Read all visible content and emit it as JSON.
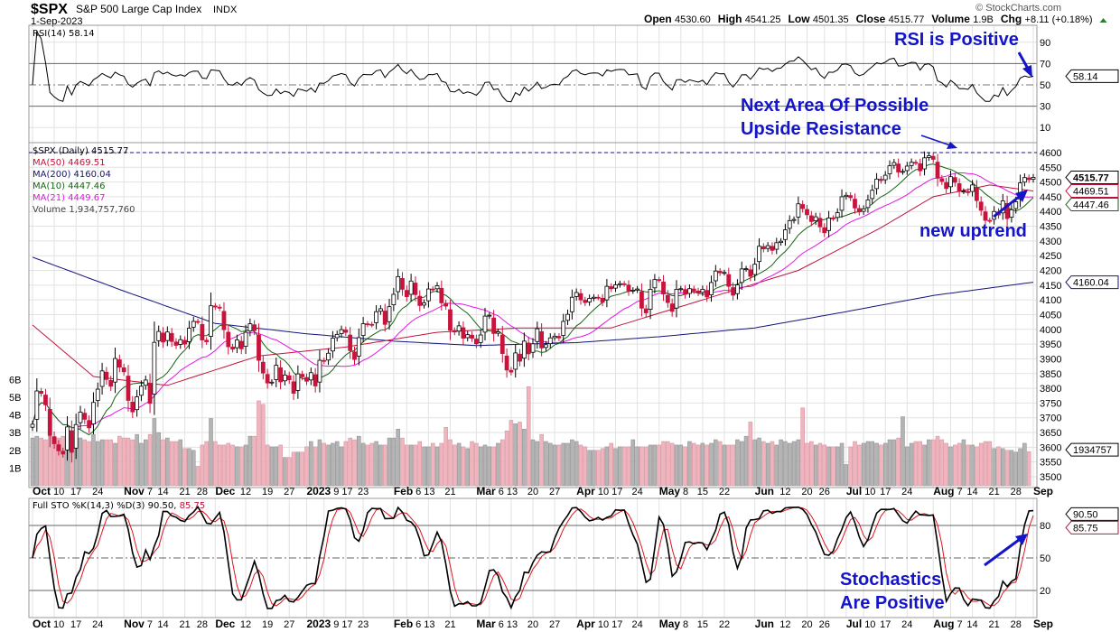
{
  "header": {
    "symbol": "$SPX",
    "name": "S&P 500 Large Cap Index",
    "exchange": "INDX",
    "date": "1-Sep-2023",
    "watermark": "© StockCharts.com",
    "ohlc": [
      {
        "k": "Open",
        "v": "4530.60"
      },
      {
        "k": "High",
        "v": "4541.25"
      },
      {
        "k": "Low",
        "v": "4501.35"
      },
      {
        "k": "Close",
        "v": "4515.77"
      },
      {
        "k": "Volume",
        "v": "1.9B"
      },
      {
        "k": "Chg",
        "v": "+8.11 (+0.18%)"
      }
    ]
  },
  "colors": {
    "ma50": "#c0143c",
    "ma200": "#14147d",
    "ma10": "#146414",
    "ma21": "#e614e6",
    "up_volume": "#b4b4b4",
    "down_volume": "#f0b4be",
    "down_candle": "#c8143c",
    "annotation": "#1414c8",
    "rsi_fill": "#6e9a6e"
  },
  "annotations": {
    "rsi": "RSI is Positive",
    "resistance_1": "Next Area Of Possible",
    "resistance_2": "Upside Resistance",
    "uptrend": "new uptrend",
    "sto_1": "Stochastics",
    "sto_2": "Are Positive"
  },
  "chart_data": [
    {
      "type": "line",
      "panel": "RSI",
      "legend": "RSI(14) 58.14",
      "last": "58.14",
      "ylim": [
        0,
        100
      ],
      "ticks": [
        "90",
        "70",
        "50",
        "30",
        "10"
      ],
      "overbought": 70,
      "oversold": 30
    },
    {
      "type": "candlestick",
      "panel": "Price",
      "legend": [
        "$SPX (Daily) 4515.77",
        "MA(50) 4469.51",
        "MA(200) 4160.04",
        "MA(10) 4447.46",
        "MA(21) 4449.67",
        "Volume 1,934,757,760"
      ],
      "start": "2022-10-03",
      "end": "2023-09-01",
      "ylim": [
        3480,
        4630
      ],
      "ticks": [
        "4600",
        "4550",
        "4500",
        "4450",
        "4400",
        "4350",
        "4300",
        "4250",
        "4200",
        "4150",
        "4100",
        "4050",
        "4000",
        "3950",
        "3900",
        "3850",
        "3800",
        "3750",
        "3700",
        "3650",
        "3600",
        "3550",
        "3500"
      ],
      "volume_ticks": [
        "6B",
        "5B",
        "4B",
        "3B",
        "2B",
        "1B"
      ],
      "resistance": 4600,
      "last_labels": {
        "close": "4515.77",
        "ma50": "4469.51",
        "ma10": "4447.46",
        "ma200": "4160.04",
        "volume": "1934757"
      },
      "close": [
        3678,
        3791,
        3783,
        3744,
        3640,
        3612,
        3588,
        3577,
        3669,
        3583,
        3677,
        3719,
        3695,
        3666,
        3752,
        3797,
        3859,
        3830,
        3807,
        3901,
        3872,
        3856,
        3759,
        3720,
        3771,
        3807,
        3828,
        3749,
        3956,
        3993,
        3957,
        3991,
        3959,
        3946,
        3965,
        3950,
        4004,
        4027,
        4026,
        3964,
        3958,
        4080,
        4076,
        4072,
        3999,
        3941,
        3933,
        3964,
        3934,
        3990,
        4019,
        3996,
        3895,
        3852,
        3818,
        3821,
        3878,
        3822,
        3845,
        3829,
        3783,
        3849,
        3839,
        3824,
        3853,
        3808,
        3895,
        3892,
        3919,
        3970,
        3983,
        3999,
        3990,
        3928,
        3898,
        3972,
        4019,
        4017,
        4016,
        4060,
        4070,
        4017,
        4077,
        4119,
        4179,
        4136,
        4111,
        4164,
        4118,
        4081,
        4090,
        4137,
        4136,
        4148,
        4090,
        4079,
        3997,
        3991,
        4012,
        3970,
        3982,
        3970,
        3951,
        3981,
        4045,
        4048,
        3986,
        3992,
        3918,
        3862,
        3855,
        3920,
        3892,
        3960,
        3917,
        3951,
        4002,
        3937,
        3948,
        3971,
        3977,
        3971,
        4027,
        4051,
        4109,
        4125,
        4100,
        4091,
        4105,
        4109,
        4108,
        4092,
        4146,
        4138,
        4151,
        4155,
        4154,
        4130,
        4133,
        4137,
        4072,
        4056,
        4136,
        4169,
        4168,
        4120,
        4091,
        4061,
        4136,
        4138,
        4119,
        4138,
        4131,
        4124,
        4136,
        4110,
        4159,
        4198,
        4192,
        4193,
        4146,
        4116,
        4151,
        4205,
        4206,
        4180,
        4221,
        4282,
        4273,
        4284,
        4268,
        4294,
        4299,
        4338,
        4369,
        4373,
        4426,
        4410,
        4389,
        4366,
        4382,
        4348,
        4328,
        4378,
        4377,
        4396,
        4450,
        4455,
        4447,
        4412,
        4399,
        4409,
        4439,
        4472,
        4510,
        4505,
        4523,
        4555,
        4566,
        4534,
        4536,
        4554,
        4567,
        4566,
        4538,
        4582,
        4589,
        4577,
        4513,
        4502,
        4478,
        4518,
        4499,
        4468,
        4469,
        4464,
        4490,
        4437,
        4404,
        4370,
        4369,
        4400,
        4388,
        4436,
        4376,
        4406,
        4433,
        4497,
        4515,
        4508,
        4515.77
      ],
      "volume_b": [
        2.7,
        2.8,
        2.7,
        2.6,
        2.8,
        2.6,
        2.7,
        2.8,
        3.2,
        2.9,
        2.6,
        2.7,
        2.6,
        2.5,
        2.9,
        2.5,
        2.6,
        2.6,
        2.6,
        2.4,
        2.8,
        2.7,
        2.7,
        2.6,
        2.9,
        2.4,
        2.6,
        2.9,
        3.8,
        3.0,
        2.6,
        2.7,
        2.5,
        2.5,
        2.6,
        2.1,
        2.1,
        2.0,
        1.1,
        2.3,
        2.5,
        3.8,
        2.5,
        2.3,
        2.3,
        2.4,
        2.3,
        2.2,
        2.2,
        2.3,
        2.8,
        2.8,
        4.8,
        4.6,
        2.3,
        2.2,
        2.2,
        2.3,
        1.6,
        1.6,
        1.9,
        1.9,
        1.9,
        2.2,
        2.5,
        2.2,
        2.6,
        2.4,
        2.3,
        2.4,
        2.5,
        2.2,
        2.5,
        2.7,
        2.6,
        2.8,
        2.4,
        2.3,
        2.4,
        2.5,
        2.3,
        2.3,
        2.7,
        2.7,
        3.2,
        2.7,
        2.3,
        2.3,
        2.3,
        2.5,
        2.2,
        2.2,
        2.4,
        2.2,
        2.4,
        3.3,
        2.6,
        2.3,
        2.4,
        2.2,
        2.1,
        2.5,
        2.4,
        2.2,
        2.3,
        2.2,
        2.2,
        2.4,
        2.6,
        3.1,
        3.7,
        3.5,
        3.6,
        3.2,
        5.6,
        2.6,
        2.5,
        2.9,
        2.5,
        2.4,
        2.3,
        2.3,
        2.4,
        2.4,
        2.6,
        2.5,
        2.3,
        2.2,
        2.0,
        2.0,
        2.0,
        2.1,
        2.2,
        2.4,
        2.1,
        2.2,
        2.2,
        2.2,
        2.6,
        2.2,
        2.2,
        2.2,
        2.3,
        2.3,
        2.3,
        2.5,
        2.5,
        2.4,
        2.3,
        2.3,
        2.2,
        2.5,
        2.4,
        2.3,
        2.4,
        2.3,
        2.4,
        2.6,
        2.5,
        2.3,
        2.3,
        2.3,
        2.6,
        2.5,
        2.8,
        3.6,
        2.6,
        2.7,
        2.5,
        2.4,
        2.5,
        2.3,
        2.6,
        2.5,
        2.4,
        2.5,
        2.6,
        4.4,
        2.4,
        2.5,
        2.3,
        2.4,
        2.3,
        2.2,
        2.2,
        2.2,
        2.4,
        1.2,
        2.2,
        2.5,
        2.3,
        2.4,
        2.5,
        2.5,
        2.4,
        2.3,
        2.4,
        2.6,
        2.6,
        2.7,
        3.9,
        2.2,
        2.4,
        2.5,
        2.5,
        2.3,
        2.6,
        2.6,
        2.8,
        2.6,
        2.4,
        2.2,
        2.3,
        2.4,
        2.6,
        2.3,
        2.3,
        2.2,
        2.4,
        2.5,
        2.5,
        2.1,
        2.2,
        2.1,
        2.0,
        2.0,
        1.9,
        2.1,
        2.4,
        1.93
      ],
      "ma50": [
        [
          "2022-10-03",
          4015
        ],
        [
          "2022-10-21",
          3840
        ],
        [
          "2022-11-15",
          3810
        ],
        [
          "2022-12-15",
          3910
        ],
        [
          "2023-01-17",
          3940
        ],
        [
          "2023-02-15",
          3990
        ],
        [
          "2023-03-15",
          4005
        ],
        [
          "2023-04-14",
          4005
        ],
        [
          "2023-05-15",
          4100
        ],
        [
          "2023-06-15",
          4200
        ],
        [
          "2023-07-14",
          4345
        ],
        [
          "2023-08-01",
          4450
        ],
        [
          "2023-08-18",
          4490
        ],
        [
          "2023-09-01",
          4469.51
        ]
      ],
      "ma200": [
        [
          "2022-10-03",
          4245
        ],
        [
          "2022-11-01",
          4130
        ],
        [
          "2022-12-01",
          4020
        ],
        [
          "2023-01-03",
          3985
        ],
        [
          "2023-02-01",
          3960
        ],
        [
          "2023-03-01",
          3945
        ],
        [
          "2023-04-03",
          3955
        ],
        [
          "2023-05-01",
          3975
        ],
        [
          "2023-06-01",
          4005
        ],
        [
          "2023-07-03",
          4060
        ],
        [
          "2023-08-01",
          4115
        ],
        [
          "2023-09-01",
          4160.04
        ]
      ]
    },
    {
      "type": "line",
      "panel": "Full STO",
      "legend": "Full STO %K(14,3) %D(3) 90.50,",
      "legend_d": "85.75",
      "last_k": "90.50",
      "last_d": "85.75",
      "ylim": [
        0,
        100
      ],
      "ticks": [
        "80",
        "50",
        "20"
      ]
    }
  ],
  "x_labels": [
    {
      "t": "Oct",
      "d": "2022-10-03",
      "b": 1
    },
    {
      "t": "10",
      "d": "2022-10-10"
    },
    {
      "t": "17",
      "d": "2022-10-17"
    },
    {
      "t": "24",
      "d": "2022-10-24"
    },
    {
      "t": "Nov",
      "d": "2022-11-01",
      "b": 1
    },
    {
      "t": "7",
      "d": "2022-11-07"
    },
    {
      "t": "14",
      "d": "2022-11-14"
    },
    {
      "t": "21",
      "d": "2022-11-21"
    },
    {
      "t": "28",
      "d": "2022-11-28"
    },
    {
      "t": "Dec",
      "d": "2022-12-01",
      "b": 1
    },
    {
      "t": "12",
      "d": "2022-12-12"
    },
    {
      "t": "19",
      "d": "2022-12-19"
    },
    {
      "t": "27",
      "d": "2022-12-27"
    },
    {
      "t": "2023",
      "d": "2023-01-03",
      "b": 1
    },
    {
      "t": "9",
      "d": "2023-01-09"
    },
    {
      "t": "17",
      "d": "2023-01-17"
    },
    {
      "t": "23",
      "d": "2023-01-23"
    },
    {
      "t": "Feb",
      "d": "2023-02-01",
      "b": 1
    },
    {
      "t": "6",
      "d": "2023-02-06"
    },
    {
      "t": "13",
      "d": "2023-02-13"
    },
    {
      "t": "21",
      "d": "2023-02-21"
    },
    {
      "t": "Mar",
      "d": "2023-03-01",
      "b": 1
    },
    {
      "t": "6",
      "d": "2023-03-06"
    },
    {
      "t": "13",
      "d": "2023-03-13"
    },
    {
      "t": "20",
      "d": "2023-03-20"
    },
    {
      "t": "27",
      "d": "2023-03-27"
    },
    {
      "t": "Apr",
      "d": "2023-04-03",
      "b": 1
    },
    {
      "t": "10",
      "d": "2023-04-10"
    },
    {
      "t": "17",
      "d": "2023-04-17"
    },
    {
      "t": "24",
      "d": "2023-04-24"
    },
    {
      "t": "May",
      "d": "2023-05-01",
      "b": 1
    },
    {
      "t": "8",
      "d": "2023-05-08"
    },
    {
      "t": "15",
      "d": "2023-05-15"
    },
    {
      "t": "22",
      "d": "2023-05-22"
    },
    {
      "t": "Jun",
      "d": "2023-06-01",
      "b": 1
    },
    {
      "t": "12",
      "d": "2023-06-12"
    },
    {
      "t": "20",
      "d": "2023-06-20"
    },
    {
      "t": "26",
      "d": "2023-06-26"
    },
    {
      "t": "Jul",
      "d": "2023-07-03",
      "b": 1
    },
    {
      "t": "10",
      "d": "2023-07-10"
    },
    {
      "t": "17",
      "d": "2023-07-17"
    },
    {
      "t": "24",
      "d": "2023-07-24"
    },
    {
      "t": "Aug",
      "d": "2023-08-01",
      "b": 1
    },
    {
      "t": "7",
      "d": "2023-08-07"
    },
    {
      "t": "14",
      "d": "2023-08-14"
    },
    {
      "t": "21",
      "d": "2023-08-21"
    },
    {
      "t": "28",
      "d": "2023-08-28"
    },
    {
      "t": "Sep",
      "d": "2023-09-01",
      "b": 1
    }
  ]
}
